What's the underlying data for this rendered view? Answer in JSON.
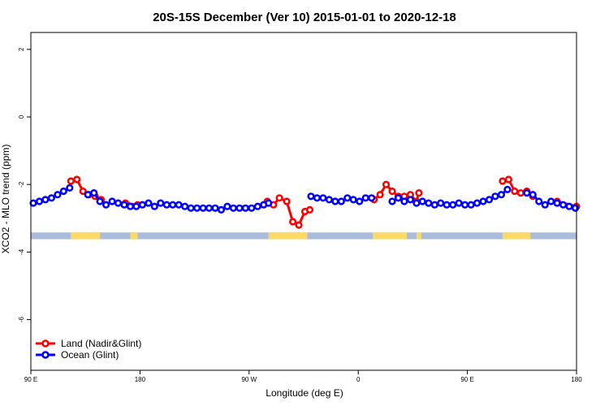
{
  "chart_data": {
    "type": "line",
    "title": "20S-15S December (Ver 10)   2015-01-01 to 2020-12-18",
    "xlabel": "Longitude (deg E)",
    "ylabel": "XCO2 - MLO trend (ppm)",
    "xlim": [
      90,
      540
    ],
    "ylim": [
      -7.5,
      2.5
    ],
    "x_ticks": [
      {
        "value": 90,
        "label": "90 E"
      },
      {
        "value": 180,
        "label": "180"
      },
      {
        "value": 270,
        "label": "90 W"
      },
      {
        "value": 360,
        "label": "0"
      },
      {
        "value": 450,
        "label": "90 E"
      },
      {
        "value": 540,
        "label": "180"
      }
    ],
    "y_ticks": [
      {
        "value": 2,
        "label": "2"
      },
      {
        "value": 0,
        "label": "0"
      },
      {
        "value": -2,
        "label": "-2"
      },
      {
        "value": -4,
        "label": "-4"
      },
      {
        "value": -6,
        "label": "-6"
      }
    ],
    "legend": {
      "position": "bottom-left"
    },
    "series": [
      {
        "name": "Land (Nadir&Glint)",
        "color": "#ff0000",
        "segments": [
          [
            [
              123,
              -1.9
            ],
            [
              128,
              -1.85
            ],
            [
              133,
              -2.2
            ],
            [
              138,
              -2.3
            ],
            [
              143,
              -2.35
            ],
            [
              148,
              -2.45
            ]
          ],
          [
            [
              168,
              -2.55
            ],
            [
              178,
              -2.6
            ]
          ],
          [
            [
              285,
              -2.5
            ],
            [
              290,
              -2.6
            ],
            [
              295,
              -2.4
            ],
            [
              301,
              -2.5
            ],
            [
              306,
              -3.1
            ],
            [
              311,
              -3.2
            ],
            [
              316,
              -2.8
            ],
            [
              320,
              -2.75
            ]
          ],
          [
            [
              373,
              -2.45
            ],
            [
              378,
              -2.3
            ],
            [
              383,
              -2.0
            ],
            [
              388,
              -2.2
            ],
            [
              393,
              -2.35
            ],
            [
              398,
              -2.35
            ],
            [
              403,
              -2.3
            ],
            [
              408,
              -2.5
            ],
            [
              410,
              -2.25
            ]
          ],
          [
            [
              479,
              -1.9
            ],
            [
              484,
              -1.85
            ],
            [
              489,
              -2.2
            ],
            [
              494,
              -2.25
            ],
            [
              499,
              -2.2
            ],
            [
              504,
              -2.35
            ]
          ],
          [
            [
              524,
              -2.5
            ],
            [
              540,
              -2.65
            ]
          ]
        ]
      },
      {
        "name": "Ocean (Glint)",
        "color": "#0000ff",
        "segments": [
          [
            [
              92,
              -2.55
            ],
            [
              97,
              -2.5
            ],
            [
              102,
              -2.45
            ],
            [
              107,
              -2.4
            ],
            [
              112,
              -2.3
            ],
            [
              117,
              -2.2
            ],
            [
              122,
              -2.1
            ]
          ],
          [
            [
              137,
              -2.3
            ],
            [
              142,
              -2.25
            ],
            [
              147,
              -2.5
            ],
            [
              152,
              -2.6
            ],
            [
              157,
              -2.5
            ],
            [
              162,
              -2.55
            ],
            [
              167,
              -2.6
            ],
            [
              172,
              -2.65
            ],
            [
              177,
              -2.65
            ],
            [
              182,
              -2.6
            ],
            [
              187,
              -2.55
            ],
            [
              192,
              -2.65
            ],
            [
              197,
              -2.55
            ],
            [
              202,
              -2.6
            ],
            [
              207,
              -2.6
            ],
            [
              212,
              -2.6
            ],
            [
              217,
              -2.65
            ],
            [
              222,
              -2.7
            ],
            [
              227,
              -2.7
            ],
            [
              232,
              -2.7
            ],
            [
              237,
              -2.7
            ],
            [
              242,
              -2.7
            ],
            [
              247,
              -2.75
            ],
            [
              252,
              -2.65
            ],
            [
              257,
              -2.7
            ],
            [
              262,
              -2.7
            ],
            [
              267,
              -2.7
            ],
            [
              272,
              -2.7
            ],
            [
              277,
              -2.65
            ],
            [
              282,
              -2.6
            ],
            [
              286,
              -2.55
            ]
          ],
          [
            [
              321,
              -2.35
            ],
            [
              326,
              -2.4
            ],
            [
              331,
              -2.4
            ],
            [
              336,
              -2.45
            ],
            [
              341,
              -2.5
            ],
            [
              346,
              -2.5
            ],
            [
              351,
              -2.4
            ],
            [
              356,
              -2.45
            ],
            [
              361,
              -2.5
            ],
            [
              366,
              -2.4
            ],
            [
              371,
              -2.4
            ]
          ],
          [
            [
              388,
              -2.5
            ],
            [
              393,
              -2.4
            ],
            [
              398,
              -2.5
            ],
            [
              403,
              -2.45
            ],
            [
              408,
              -2.55
            ],
            [
              413,
              -2.5
            ],
            [
              418,
              -2.55
            ],
            [
              423,
              -2.6
            ],
            [
              428,
              -2.55
            ],
            [
              433,
              -2.6
            ],
            [
              438,
              -2.6
            ],
            [
              443,
              -2.55
            ],
            [
              448,
              -2.6
            ],
            [
              453,
              -2.6
            ],
            [
              458,
              -2.55
            ],
            [
              463,
              -2.5
            ],
            [
              468,
              -2.45
            ],
            [
              473,
              -2.35
            ],
            [
              478,
              -2.3
            ],
            [
              483,
              -2.15
            ]
          ],
          [
            [
              499,
              -2.25
            ],
            [
              504,
              -2.3
            ],
            [
              509,
              -2.5
            ],
            [
              514,
              -2.6
            ],
            [
              519,
              -2.5
            ],
            [
              524,
              -2.55
            ],
            [
              529,
              -2.6
            ],
            [
              534,
              -2.65
            ],
            [
              539,
              -2.7
            ]
          ]
        ]
      }
    ],
    "surface_band": {
      "y_range": [
        -3.42,
        -3.62
      ],
      "ocean_color": "#a9bcdc",
      "land_color": "#ffd966",
      "land_spans": [
        [
          123,
          147
        ],
        [
          172,
          178
        ],
        [
          286,
          318
        ],
        [
          372,
          400
        ],
        [
          408,
          412
        ],
        [
          479,
          502
        ]
      ]
    }
  }
}
